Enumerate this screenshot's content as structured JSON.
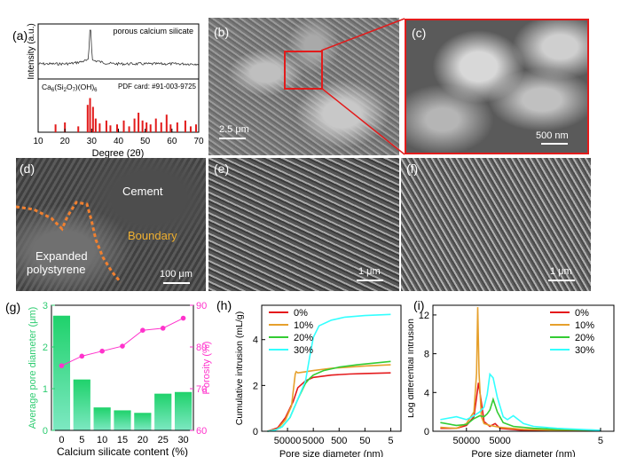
{
  "figure": {
    "a": {
      "label": "(a)",
      "top_title": "porous calcium silicate",
      "ylabel": "Intensity (a.u.)",
      "formula_prefix": "Ca",
      "formula_sub1": "6",
      "formula_mid1": "(Si",
      "formula_sub2": "2",
      "formula_mid2": "O",
      "formula_sub3": "7",
      "formula_mid3": ")(OH)",
      "formula_sub4": "6",
      "pdf": "PDF card: #91-003-9725",
      "xlabel": "Degree (2θ)",
      "xticks": [
        "10",
        "20",
        "30",
        "40",
        "50",
        "60",
        "70"
      ]
    },
    "b": {
      "label": "(b)",
      "scale": "2.5 μm"
    },
    "c": {
      "label": "(c)",
      "scale": "500 nm"
    },
    "d": {
      "label": "(d)",
      "cement": "Cement",
      "boundary": "Boundary",
      "eps_line1": "Expanded",
      "eps_line2": "polystyrene",
      "scale": "100 μm"
    },
    "e": {
      "label": "(e)",
      "scale": "1 μm"
    },
    "f": {
      "label": "(f)",
      "scale": "1 μm"
    },
    "g": {
      "label": "(g)"
    },
    "h": {
      "label": "(h)"
    },
    "i": {
      "label": "(i)"
    }
  },
  "chart_data": [
    {
      "id": "g",
      "type": "bar",
      "categories": [
        "0",
        "5",
        "10",
        "15",
        "20",
        "25",
        "30"
      ],
      "series": [
        {
          "name": "Average pore diameter (μm)",
          "values": [
            2.75,
            1.22,
            0.55,
            0.48,
            0.42,
            0.88,
            0.92
          ],
          "color": "#2ecc71"
        },
        {
          "name": "Porosity (%)",
          "type": "line",
          "values": [
            75.5,
            77.8,
            79.0,
            80.2,
            84.0,
            84.5,
            86.9
          ],
          "color": "#ff33cc"
        }
      ],
      "xlabel": "Calcium silicate content (%)",
      "ylabel": "Average pore diameter (μm)",
      "ylabel_right": "Porosity (%)",
      "ylim": [
        0,
        3
      ],
      "yticks": [
        "0",
        "1",
        "2",
        "3"
      ],
      "ylim_right": [
        60,
        90
      ],
      "yticks_right": [
        "60",
        "70",
        "80",
        "90"
      ]
    },
    {
      "id": "h",
      "type": "line",
      "xlabel": "Pore size diameter (nm)",
      "ylabel": "Cumulative intrusion (mL/g)",
      "xscale": "log-reversed",
      "xticks": [
        "50000",
        "5000",
        "500",
        "50",
        "5"
      ],
      "ylim": [
        0,
        5.5
      ],
      "yticks": [
        "0",
        "2",
        "4"
      ],
      "legend_position": "top-left",
      "series": [
        {
          "name": "0%",
          "color": "#e41a1c",
          "x": [
            300000,
            120000,
            60000,
            30000,
            20000,
            10000,
            5000,
            1000,
            200,
            50,
            5
          ],
          "y": [
            0,
            0.15,
            0.6,
            1.3,
            1.9,
            2.2,
            2.35,
            2.45,
            2.5,
            2.52,
            2.55
          ]
        },
        {
          "name": "10%",
          "color": "#e6a02c",
          "x": [
            300000,
            120000,
            60000,
            35000,
            25000,
            23000,
            20000,
            10000,
            5000,
            1000,
            200,
            50,
            5
          ],
          "y": [
            0,
            0.1,
            0.5,
            1.1,
            2.5,
            2.6,
            2.55,
            2.6,
            2.65,
            2.75,
            2.8,
            2.85,
            2.9
          ]
        },
        {
          "name": "20%",
          "color": "#33cc33",
          "x": [
            300000,
            150000,
            80000,
            40000,
            20000,
            10000,
            7000,
            5000,
            2000,
            500,
            100,
            20,
            5
          ],
          "y": [
            0,
            0.05,
            0.2,
            0.6,
            1.4,
            2.1,
            2.3,
            2.45,
            2.65,
            2.8,
            2.9,
            2.98,
            3.05
          ]
        },
        {
          "name": "30%",
          "color": "#33ffff",
          "x": [
            300000,
            150000,
            80000,
            40000,
            20000,
            10000,
            7000,
            5000,
            3000,
            1000,
            300,
            50,
            5
          ],
          "y": [
            0,
            0.05,
            0.2,
            0.6,
            1.4,
            2.2,
            3.2,
            4.1,
            4.6,
            4.85,
            4.98,
            5.05,
            5.1
          ]
        }
      ]
    },
    {
      "id": "i",
      "type": "line",
      "xlabel": "Pore size diameter (nm)",
      "ylabel": "Log differential Intrusion",
      "xscale": "log-reversed",
      "xticks": [
        "50000",
        "5000",
        "5"
      ],
      "ylim": [
        0,
        13
      ],
      "yticks": [
        "0",
        "4",
        "8",
        "12"
      ],
      "legend_position": "top-right",
      "series": [
        {
          "name": "0%",
          "color": "#e41a1c",
          "x": [
            300000,
            100000,
            50000,
            30000,
            25000,
            22000,
            18000,
            15000,
            10000,
            7000,
            5000,
            1000,
            100,
            5
          ],
          "y": [
            0.3,
            0.3,
            0.6,
            1.5,
            3.5,
            5.0,
            3.0,
            1.0,
            0.5,
            0.8,
            0.3,
            0.1,
            0.05,
            0.05
          ]
        },
        {
          "name": "10%",
          "color": "#e6a02c",
          "x": [
            300000,
            100000,
            50000,
            30000,
            25000,
            23000,
            21000,
            18000,
            15000,
            10000,
            5000,
            1000,
            100,
            5
          ],
          "y": [
            0.4,
            0.3,
            0.8,
            2.0,
            6.0,
            12.8,
            6.0,
            1.5,
            0.8,
            0.6,
            0.4,
            0.2,
            0.1,
            0.05
          ]
        },
        {
          "name": "20%",
          "color": "#33cc33",
          "x": [
            300000,
            100000,
            50000,
            30000,
            20000,
            15000,
            12000,
            10000,
            8000,
            6000,
            4000,
            2000,
            500,
            100,
            5
          ],
          "y": [
            0.9,
            0.6,
            0.7,
            1.3,
            1.6,
            1.5,
            1.8,
            2.2,
            3.3,
            2.0,
            0.9,
            0.5,
            0.3,
            0.2,
            0.1
          ]
        },
        {
          "name": "30%",
          "color": "#33ffff",
          "x": [
            300000,
            100000,
            50000,
            30000,
            20000,
            15000,
            12000,
            10000,
            8000,
            6000,
            4000,
            3000,
            2000,
            1000,
            500,
            100,
            5
          ],
          "y": [
            1.2,
            1.5,
            1.2,
            1.6,
            2.0,
            2.5,
            3.8,
            5.9,
            5.5,
            3.5,
            1.5,
            1.2,
            1.6,
            0.8,
            0.5,
            0.3,
            0.1
          ]
        }
      ]
    }
  ]
}
